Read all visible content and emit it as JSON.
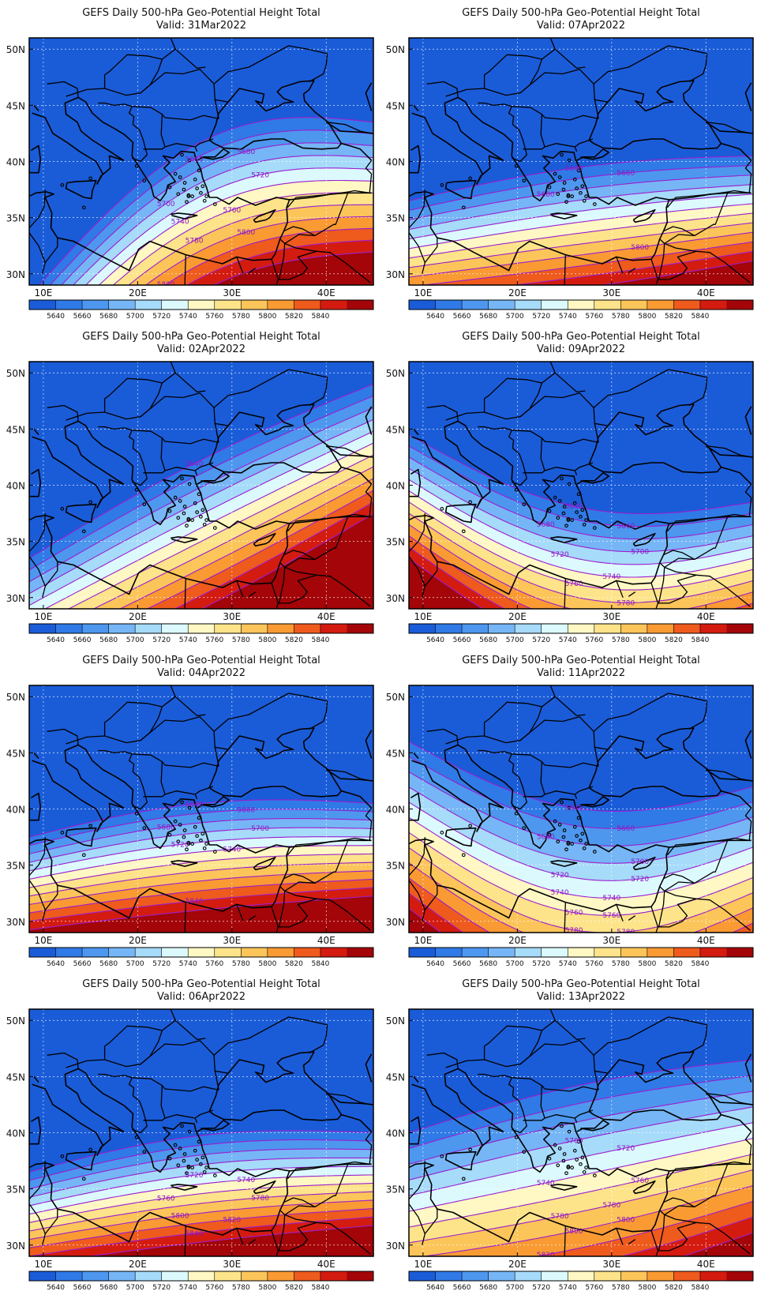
{
  "figure": {
    "title": "GEFS Daily 500-hPa Geo-Potential Height Total",
    "valid_prefix": "Valid: ",
    "lat_labels": [
      "50N",
      "45N",
      "40N",
      "35N",
      "30N"
    ],
    "lon_labels": [
      "10E",
      "20E",
      "30E",
      "40E"
    ],
    "colorbar": {
      "labels": [
        "5640",
        "5660",
        "5680",
        "5700",
        "5720",
        "5740",
        "5760",
        "5780",
        "5800",
        "5820",
        "5840"
      ],
      "colors": [
        "#1a5cd8",
        "#2f7ae6",
        "#4d97ef",
        "#76b6f6",
        "#a6dbfa",
        "#dcfafe",
        "#fff8c4",
        "#fde48a",
        "#fcc55a",
        "#f99a33",
        "#ef5a1d",
        "#d41b10",
        "#a30508"
      ]
    },
    "contour_color": "#9b1ecf",
    "land_color": "#000000"
  },
  "panels": [
    {
      "valid": "31Mar2022",
      "labels": [
        "5660",
        "5680",
        "5700",
        "5720",
        "5740",
        "5760",
        "5780",
        "5800",
        "5820"
      ]
    },
    {
      "valid": "07Apr2022",
      "labels": [
        "5640",
        "5660",
        "5680",
        "5800"
      ]
    },
    {
      "valid": "02Apr2022",
      "labels": [
        "5640"
      ]
    },
    {
      "valid": "09Apr2022",
      "labels": [
        "5640",
        "5660",
        "5680",
        "5700",
        "5720",
        "5740",
        "5760",
        "5780"
      ]
    },
    {
      "valid": "04Apr2022",
      "labels": [
        "5640",
        "5660",
        "5680",
        "5700",
        "5720",
        "5740",
        "5840"
      ]
    },
    {
      "valid": "11Apr2022",
      "labels": [
        "5640",
        "5660",
        "5680",
        "5700",
        "5720",
        "5740",
        "5760",
        "5780",
        "5800",
        "5720",
        "5740",
        "5760",
        "5780",
        "5820"
      ]
    },
    {
      "valid": "06Apr2022",
      "labels": [
        "5720",
        "5740",
        "5760",
        "5780",
        "5800",
        "5820",
        "5840"
      ]
    },
    {
      "valid": "13Apr2022",
      "labels": [
        "5700",
        "5720",
        "5740",
        "5760",
        "5780",
        "5780",
        "5800",
        "5800",
        "5820"
      ]
    }
  ]
}
